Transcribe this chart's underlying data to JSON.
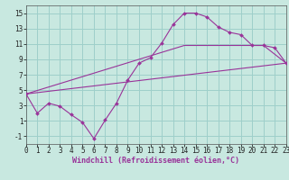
{
  "background_color": "#c8e8e0",
  "grid_color": "#9ecfca",
  "line_color": "#993399",
  "xlim": [
    0,
    23
  ],
  "ylim": [
    -2,
    16
  ],
  "xticks": [
    0,
    1,
    2,
    3,
    4,
    5,
    6,
    7,
    8,
    9,
    10,
    11,
    12,
    13,
    14,
    15,
    16,
    17,
    18,
    19,
    20,
    21,
    22,
    23
  ],
  "yticks": [
    -1,
    1,
    3,
    5,
    7,
    9,
    11,
    13,
    15
  ],
  "xlabel": "Windchill (Refroidissement éolien,°C)",
  "line1_x": [
    0,
    1,
    2,
    3,
    4,
    5,
    6,
    7,
    8,
    9,
    10,
    11,
    12,
    13,
    14,
    15,
    16,
    17,
    18,
    19,
    20,
    21,
    22,
    23
  ],
  "line1_y": [
    4.5,
    2.0,
    3.3,
    2.9,
    1.8,
    0.8,
    -1.3,
    1.1,
    3.3,
    6.3,
    8.5,
    9.2,
    11.1,
    13.5,
    15.0,
    15.0,
    14.5,
    13.2,
    12.5,
    12.2,
    10.8,
    10.8,
    10.5,
    8.5
  ],
  "line2_x": [
    0,
    23
  ],
  "line2_y": [
    4.5,
    8.5
  ],
  "line3_x": [
    0,
    14,
    21,
    23
  ],
  "line3_y": [
    4.5,
    10.8,
    10.8,
    8.5
  ],
  "tick_fontsize": 5.5,
  "axis_fontsize": 6.0
}
